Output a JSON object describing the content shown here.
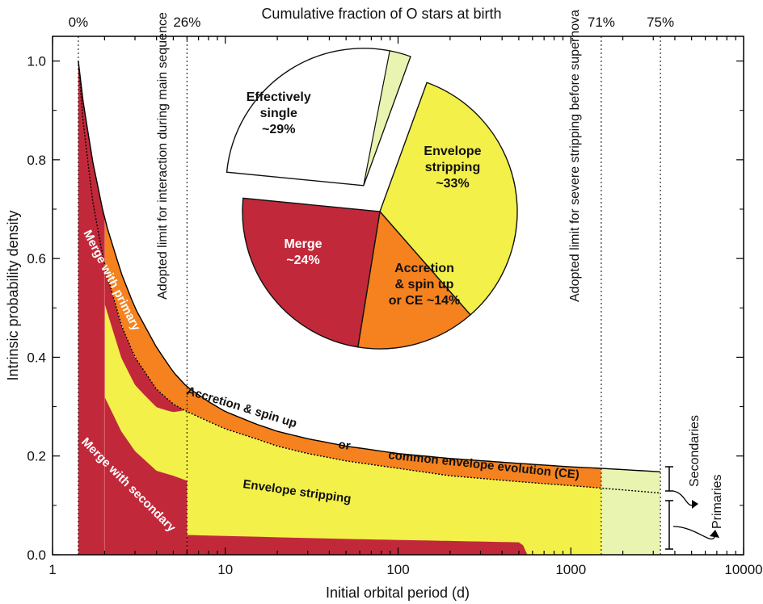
{
  "chart_data": {
    "type": "area",
    "title": "",
    "xlabel": "Initial orbital period (d)",
    "ylabel": "Intrinsic probability density",
    "top_axis_label": "Cumulative fraction of O stars at birth",
    "x_scale": "log",
    "xlim": [
      1,
      10000
    ],
    "ylim": [
      0,
      1.05
    ],
    "x_ticks": [
      1,
      10,
      100,
      1000,
      10000
    ],
    "x_tick_labels": [
      "1",
      "10",
      "100",
      "1000",
      "10000"
    ],
    "y_ticks": [
      0,
      0.2,
      0.4,
      0.6,
      0.8,
      1.0
    ],
    "y_tick_labels": [
      "0.0",
      "0.2",
      "0.4",
      "0.6",
      "0.8",
      "1.0"
    ],
    "top_ticks": [
      {
        "x": 1.41,
        "label": "0%"
      },
      {
        "x": 6,
        "label": "26%"
      },
      {
        "x": 1500,
        "label": "71%"
      },
      {
        "x": 3300,
        "label": "75%"
      }
    ],
    "limit_lines": [
      {
        "x": 6,
        "label": "Adopted limit for interaction during main sequence"
      },
      {
        "x": 1500,
        "label": "Adopted limit for severe stripping before supernova"
      }
    ],
    "colors": {
      "merge": "#c1293a",
      "accretion": "#f5821f",
      "stripping": "#f3f04a",
      "single": "#e8f4b0"
    },
    "curves": {
      "total": {
        "x": [
          1.41,
          1.5,
          1.7,
          2.0,
          2.5,
          3.0,
          4.0,
          5.0,
          6.0,
          8.0,
          10,
          15,
          20,
          30,
          50,
          100,
          200,
          500,
          1000,
          1500,
          3300
        ],
        "y": [
          1.0,
          0.92,
          0.8,
          0.68,
          0.57,
          0.5,
          0.42,
          0.37,
          0.34,
          0.31,
          0.29,
          0.265,
          0.25,
          0.235,
          0.22,
          0.205,
          0.195,
          0.185,
          0.178,
          0.175,
          0.168
        ]
      },
      "secondaries": {
        "x": [
          1.41,
          1.5,
          1.7,
          2.0,
          2.5,
          3.0,
          4.0,
          5.0,
          6.0,
          8.0,
          10,
          15,
          20,
          30,
          50,
          100,
          200,
          500,
          1000,
          1500,
          3300
        ],
        "y": [
          1.0,
          0.88,
          0.72,
          0.585,
          0.465,
          0.4,
          0.335,
          0.305,
          0.29,
          0.27,
          0.255,
          0.235,
          0.22,
          0.205,
          0.19,
          0.175,
          0.16,
          0.148,
          0.14,
          0.135,
          0.125
        ]
      },
      "merge_secondary_upper": {
        "x": [
          1.41,
          2.0,
          2.5,
          3.0,
          4.0,
          5.0,
          6.0
        ],
        "y": [
          1.0,
          0.32,
          0.25,
          0.21,
          0.17,
          0.16,
          0.15
        ]
      },
      "merge_floor": {
        "x": [
          6.0,
          10,
          50,
          200,
          520,
          560
        ],
        "y": [
          0.04,
          0.038,
          0.032,
          0.028,
          0.025,
          0.0
        ]
      }
    },
    "regions": [
      {
        "name": "Merge with primary"
      },
      {
        "name": "Merge with secondary"
      },
      {
        "name": "Accretion & spin up"
      },
      {
        "name": "or"
      },
      {
        "name": "common envelope evolution (CE)"
      },
      {
        "name": "Envelope stripping"
      }
    ],
    "bracket_labels": [
      "Secondaries",
      "Primaries"
    ],
    "pie": {
      "slices": [
        {
          "label": "Envelope stripping",
          "label_lines": [
            "Envelope",
            "stripping",
            "~33%"
          ],
          "value": 33,
          "color": "#f3f04a"
        },
        {
          "label": "Accretion & spin up or CE",
          "label_lines": [
            "Accretion",
            "& spin up",
            "or CE ~14%"
          ],
          "value": 14,
          "color": "#f5821f"
        },
        {
          "label": "Merge",
          "label_lines": [
            "Merge",
            "~24%"
          ],
          "value": 24,
          "color": "#c1293a"
        },
        {
          "label": "Effectively single",
          "label_lines": [
            "Effectively",
            "single",
            "~29%"
          ],
          "value": 29,
          "color": "#ffffff"
        }
      ]
    }
  }
}
